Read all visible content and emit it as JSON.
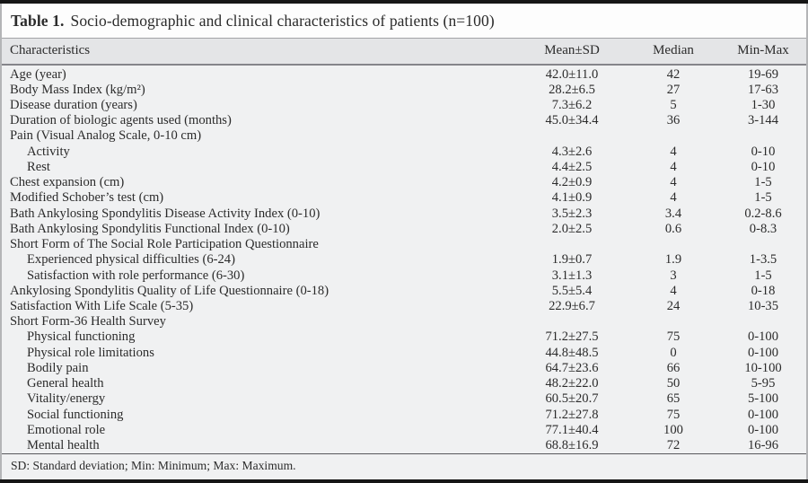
{
  "table": {
    "title_label": "Table 1.",
    "title_text": "Socio-demographic and clinical characteristics of patients (n=100)",
    "columns": {
      "characteristics": "Characteristics",
      "mean_sd": "Mean±SD",
      "median": "Median",
      "min_max": "Min-Max"
    },
    "rows": [
      {
        "label": "Age (year)",
        "indent": false,
        "mean_sd": "42.0±11.0",
        "median": "42",
        "min_max": "19-69"
      },
      {
        "label": "Body Mass Index (kg/m²)",
        "indent": false,
        "mean_sd": "28.2±6.5",
        "median": "27",
        "min_max": "17-63"
      },
      {
        "label": "Disease duration (years)",
        "indent": false,
        "mean_sd": "7.3±6.2",
        "median": "5",
        "min_max": "1-30"
      },
      {
        "label": "Duration of biologic agents used (months)",
        "indent": false,
        "mean_sd": "45.0±34.4",
        "median": "36",
        "min_max": "3-144"
      },
      {
        "label": "Pain (Visual Analog Scale, 0-10 cm)",
        "indent": false,
        "mean_sd": "",
        "median": "",
        "min_max": ""
      },
      {
        "label": "Activity",
        "indent": true,
        "mean_sd": "4.3±2.6",
        "median": "4",
        "min_max": "0-10"
      },
      {
        "label": "Rest",
        "indent": true,
        "mean_sd": "4.4±2.5",
        "median": "4",
        "min_max": "0-10"
      },
      {
        "label": "Chest expansion (cm)",
        "indent": false,
        "mean_sd": "4.2±0.9",
        "median": "4",
        "min_max": "1-5"
      },
      {
        "label": "Modified Schober’s test (cm)",
        "indent": false,
        "mean_sd": "4.1±0.9",
        "median": "4",
        "min_max": "1-5"
      },
      {
        "label": "Bath Ankylosing Spondylitis Disease Activity Index (0-10)",
        "indent": false,
        "mean_sd": "3.5±2.3",
        "median": "3.4",
        "min_max": "0.2-8.6"
      },
      {
        "label": "Bath Ankylosing Spondylitis Functional Index (0-10)",
        "indent": false,
        "mean_sd": "2.0±2.5",
        "median": "0.6",
        "min_max": "0-8.3"
      },
      {
        "label": "Short Form of The Social Role Participation Questionnaire",
        "indent": false,
        "mean_sd": "",
        "median": "",
        "min_max": ""
      },
      {
        "label": "Experienced physical difficulties (6-24)",
        "indent": true,
        "mean_sd": "1.9±0.7",
        "median": "1.9",
        "min_max": "1-3.5"
      },
      {
        "label": "Satisfaction with role performance (6-30)",
        "indent": true,
        "mean_sd": "3.1±1.3",
        "median": "3",
        "min_max": "1-5"
      },
      {
        "label": "Ankylosing Spondylitis Quality of Life Questionnaire (0-18)",
        "indent": false,
        "mean_sd": "5.5±5.4",
        "median": "4",
        "min_max": "0-18"
      },
      {
        "label": "Satisfaction With Life Scale (5-35)",
        "indent": false,
        "mean_sd": "22.9±6.7",
        "median": "24",
        "min_max": "10-35"
      },
      {
        "label": "Short Form-36 Health Survey",
        "indent": false,
        "mean_sd": "",
        "median": "",
        "min_max": ""
      },
      {
        "label": "Physical functioning",
        "indent": true,
        "mean_sd": "71.2±27.5",
        "median": "75",
        "min_max": "0-100"
      },
      {
        "label": "Physical role limitations",
        "indent": true,
        "mean_sd": "44.8±48.5",
        "median": "0",
        "min_max": "0-100"
      },
      {
        "label": "Bodily pain",
        "indent": true,
        "mean_sd": "64.7±23.6",
        "median": "66",
        "min_max": "10-100"
      },
      {
        "label": "General health",
        "indent": true,
        "mean_sd": "48.2±22.0",
        "median": "50",
        "min_max": "5-95"
      },
      {
        "label": "Vitality/energy",
        "indent": true,
        "mean_sd": "60.5±20.7",
        "median": "65",
        "min_max": "5-100"
      },
      {
        "label": "Social functioning",
        "indent": true,
        "mean_sd": "71.2±27.8",
        "median": "75",
        "min_max": "0-100"
      },
      {
        "label": "Emotional role",
        "indent": true,
        "mean_sd": "77.1±40.4",
        "median": "100",
        "min_max": "0-100"
      },
      {
        "label": "Mental health",
        "indent": true,
        "mean_sd": "68.8±16.9",
        "median": "72",
        "min_max": "16-96"
      }
    ],
    "footnote": "SD: Standard deviation; Min: Minimum; Max: Maximum."
  },
  "colors": {
    "rule_black": "#161616",
    "title_bg": "#fdfdfd",
    "header_bg": "#e4e5e7",
    "body_bg": "#f0f1f2",
    "side_border": "#b4b5b7",
    "text": "#2b2b2b"
  }
}
